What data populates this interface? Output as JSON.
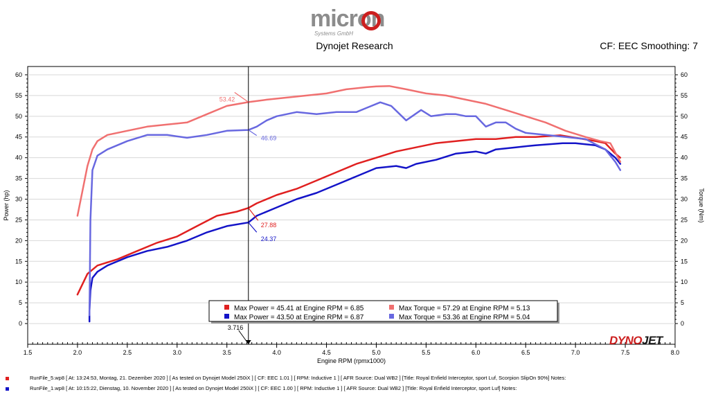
{
  "header": {
    "logo_text": "micron",
    "logo_sub": "Systems GmbH",
    "title": "Dynojet Research",
    "smoothing": "CF: EEC Smoothing: 7"
  },
  "chart_data": {
    "type": "line",
    "xlabel": "Engine RPM (rpmx1000)",
    "ylabel_left": "Power (hp)",
    "ylabel_right": "Torque (Nm)",
    "xlim": [
      1.5,
      8.0
    ],
    "ylim": [
      -5,
      62
    ],
    "x_ticks": [
      "1.5",
      "2.0",
      "2.5",
      "3.0",
      "3.5",
      "4.0",
      "4.5",
      "5.0",
      "5.5",
      "6.0",
      "6.5",
      "7.0",
      "7.5",
      "8.0"
    ],
    "y_ticks": [
      "0",
      "5",
      "10",
      "15",
      "20",
      "25",
      "30",
      "35",
      "40",
      "45",
      "50",
      "55",
      "60"
    ],
    "cursor": {
      "x": 3.716,
      "label": "3.716"
    },
    "series": [
      {
        "name": "Max Power = 45.41 at Engine RPM = 6.85",
        "color": "#e02020",
        "width": 2.5,
        "x": [
          2.0,
          2.1,
          2.2,
          2.4,
          2.6,
          2.8,
          3.0,
          3.2,
          3.4,
          3.6,
          3.716,
          3.8,
          4.0,
          4.2,
          4.4,
          4.6,
          4.8,
          5.0,
          5.2,
          5.4,
          5.6,
          5.8,
          6.0,
          6.2,
          6.4,
          6.6,
          6.85,
          7.0,
          7.2,
          7.3,
          7.4,
          7.45
        ],
        "y": [
          7,
          12,
          14,
          15.5,
          17.5,
          19.5,
          21,
          23.5,
          26,
          27,
          27.88,
          29,
          31,
          32.5,
          34.5,
          36.5,
          38.5,
          40,
          41.5,
          42.5,
          43.5,
          44,
          44.5,
          44.5,
          45,
          45,
          45.41,
          44.8,
          44,
          43.5,
          41,
          40
        ]
      },
      {
        "name": "Max Power = 43.50 at Engine RPM = 6.87",
        "color": "#1414c8",
        "width": 2.5,
        "x": [
          2.12,
          2.12,
          2.13,
          2.15,
          2.2,
          2.3,
          2.5,
          2.7,
          2.9,
          3.1,
          3.3,
          3.5,
          3.716,
          3.8,
          4.0,
          4.2,
          4.4,
          4.6,
          4.8,
          5.0,
          5.2,
          5.3,
          5.4,
          5.6,
          5.8,
          6.0,
          6.1,
          6.2,
          6.4,
          6.6,
          6.87,
          7.0,
          7.2,
          7.3,
          7.4,
          7.45
        ],
        "y": [
          0.5,
          3,
          8,
          11,
          12.5,
          14,
          16,
          17.5,
          18.5,
          20,
          22,
          23.5,
          24.37,
          26,
          28,
          30,
          31.5,
          33.5,
          35.5,
          37.5,
          38,
          37.5,
          38.5,
          39.5,
          41,
          41.5,
          41,
          42,
          42.5,
          43,
          43.5,
          43.5,
          43,
          42,
          40,
          38.5
        ]
      },
      {
        "name": "Max Torque = 57.29 at Engine RPM = 5.13",
        "color": "#f07070",
        "width": 2.5,
        "x": [
          2.0,
          2.05,
          2.1,
          2.15,
          2.2,
          2.3,
          2.5,
          2.7,
          2.9,
          3.1,
          3.3,
          3.5,
          3.716,
          3.9,
          4.1,
          4.3,
          4.5,
          4.7,
          4.9,
          5.0,
          5.13,
          5.3,
          5.5,
          5.7,
          5.9,
          6.1,
          6.3,
          6.5,
          6.7,
          6.9,
          7.1,
          7.25,
          7.35,
          7.45
        ],
        "y": [
          26,
          32,
          38,
          42,
          44,
          45.5,
          46.5,
          47.5,
          48,
          48.5,
          50.5,
          52.5,
          53.42,
          54,
          54.5,
          55,
          55.5,
          56.5,
          57,
          57.2,
          57.29,
          56.5,
          55.5,
          55,
          54,
          53,
          51.5,
          50,
          48.5,
          46.5,
          45,
          44,
          43.5,
          39
        ]
      },
      {
        "name": "Max Torque = 53.36 at Engine RPM = 5.04",
        "color": "#6868e0",
        "width": 2.5,
        "x": [
          2.12,
          2.13,
          2.15,
          2.2,
          2.3,
          2.5,
          2.7,
          2.9,
          3.1,
          3.3,
          3.5,
          3.716,
          3.8,
          3.9,
          4.0,
          4.2,
          4.4,
          4.6,
          4.8,
          4.9,
          5.04,
          5.15,
          5.3,
          5.45,
          5.55,
          5.7,
          5.8,
          5.9,
          6.0,
          6.1,
          6.2,
          6.3,
          6.4,
          6.5,
          6.7,
          6.9,
          7.1,
          7.3,
          7.4,
          7.45
        ],
        "y": [
          2,
          25,
          37,
          40.5,
          42,
          44,
          45.5,
          45.5,
          44.8,
          45.5,
          46.5,
          46.69,
          47.5,
          49,
          50,
          51,
          50.5,
          51,
          51,
          52,
          53.36,
          52.5,
          49,
          51.5,
          50,
          50.5,
          50.5,
          50,
          50,
          47.5,
          48.5,
          48.5,
          47,
          46,
          45.5,
          45,
          44.5,
          42,
          39,
          37
        ]
      }
    ],
    "cursor_labels": [
      {
        "text": "53.42",
        "x": 3.716,
        "y": 53.42,
        "color": "#f07070"
      },
      {
        "text": "46.69",
        "x": 3.716,
        "y": 46.69,
        "color": "#6868e0"
      },
      {
        "text": "27.88",
        "x": 3.716,
        "y": 27.88,
        "color": "#e02020"
      },
      {
        "text": "24.37",
        "x": 3.716,
        "y": 24.37,
        "color": "#1414c8"
      }
    ],
    "legend": [
      {
        "text": "Max Power = 45.41 at Engine RPM = 6.85",
        "color": "#e02020"
      },
      {
        "text": "Max Torque = 57.29 at Engine RPM = 5.13",
        "color": "#f07070"
      },
      {
        "text": "Max Power = 43.50 at Engine RPM = 6.87",
        "color": "#1414c8"
      },
      {
        "text": "Max Torque = 53.36 at Engine RPM = 5.04",
        "color": "#6868e0"
      }
    ]
  },
  "brand": {
    "part1": "DYNO",
    "part2": "JET"
  },
  "footer": {
    "run1": "RunFile_5.wp8 [ At: 13:24:53, Montag, 21. Dezember 2020 ] [ As tested on Dynojet Model 250iX ] [ CF: EEC 1.01 ] [ RPM: Inductive 1 ] [ AFR Source: Dual WB2 ] [Title: Royal Enfield Interceptor, sport Luf, Scorpion SlipOn 90%] Notes:",
    "run2": "RunFile_1.wp8 [ At: 10:15:22, Dienstag, 10. November 2020 ] [ As tested on Dynojet Model 250iX ] [ CF: EEC 1.00 ] [ RPM: Inductive 1 ] [ AFR Source: Dual WB2 ] [Title: Royal Enfield Interceptor, sport Luf] Notes:",
    "run1_color": "#e02020",
    "run2_color": "#1414c8"
  }
}
